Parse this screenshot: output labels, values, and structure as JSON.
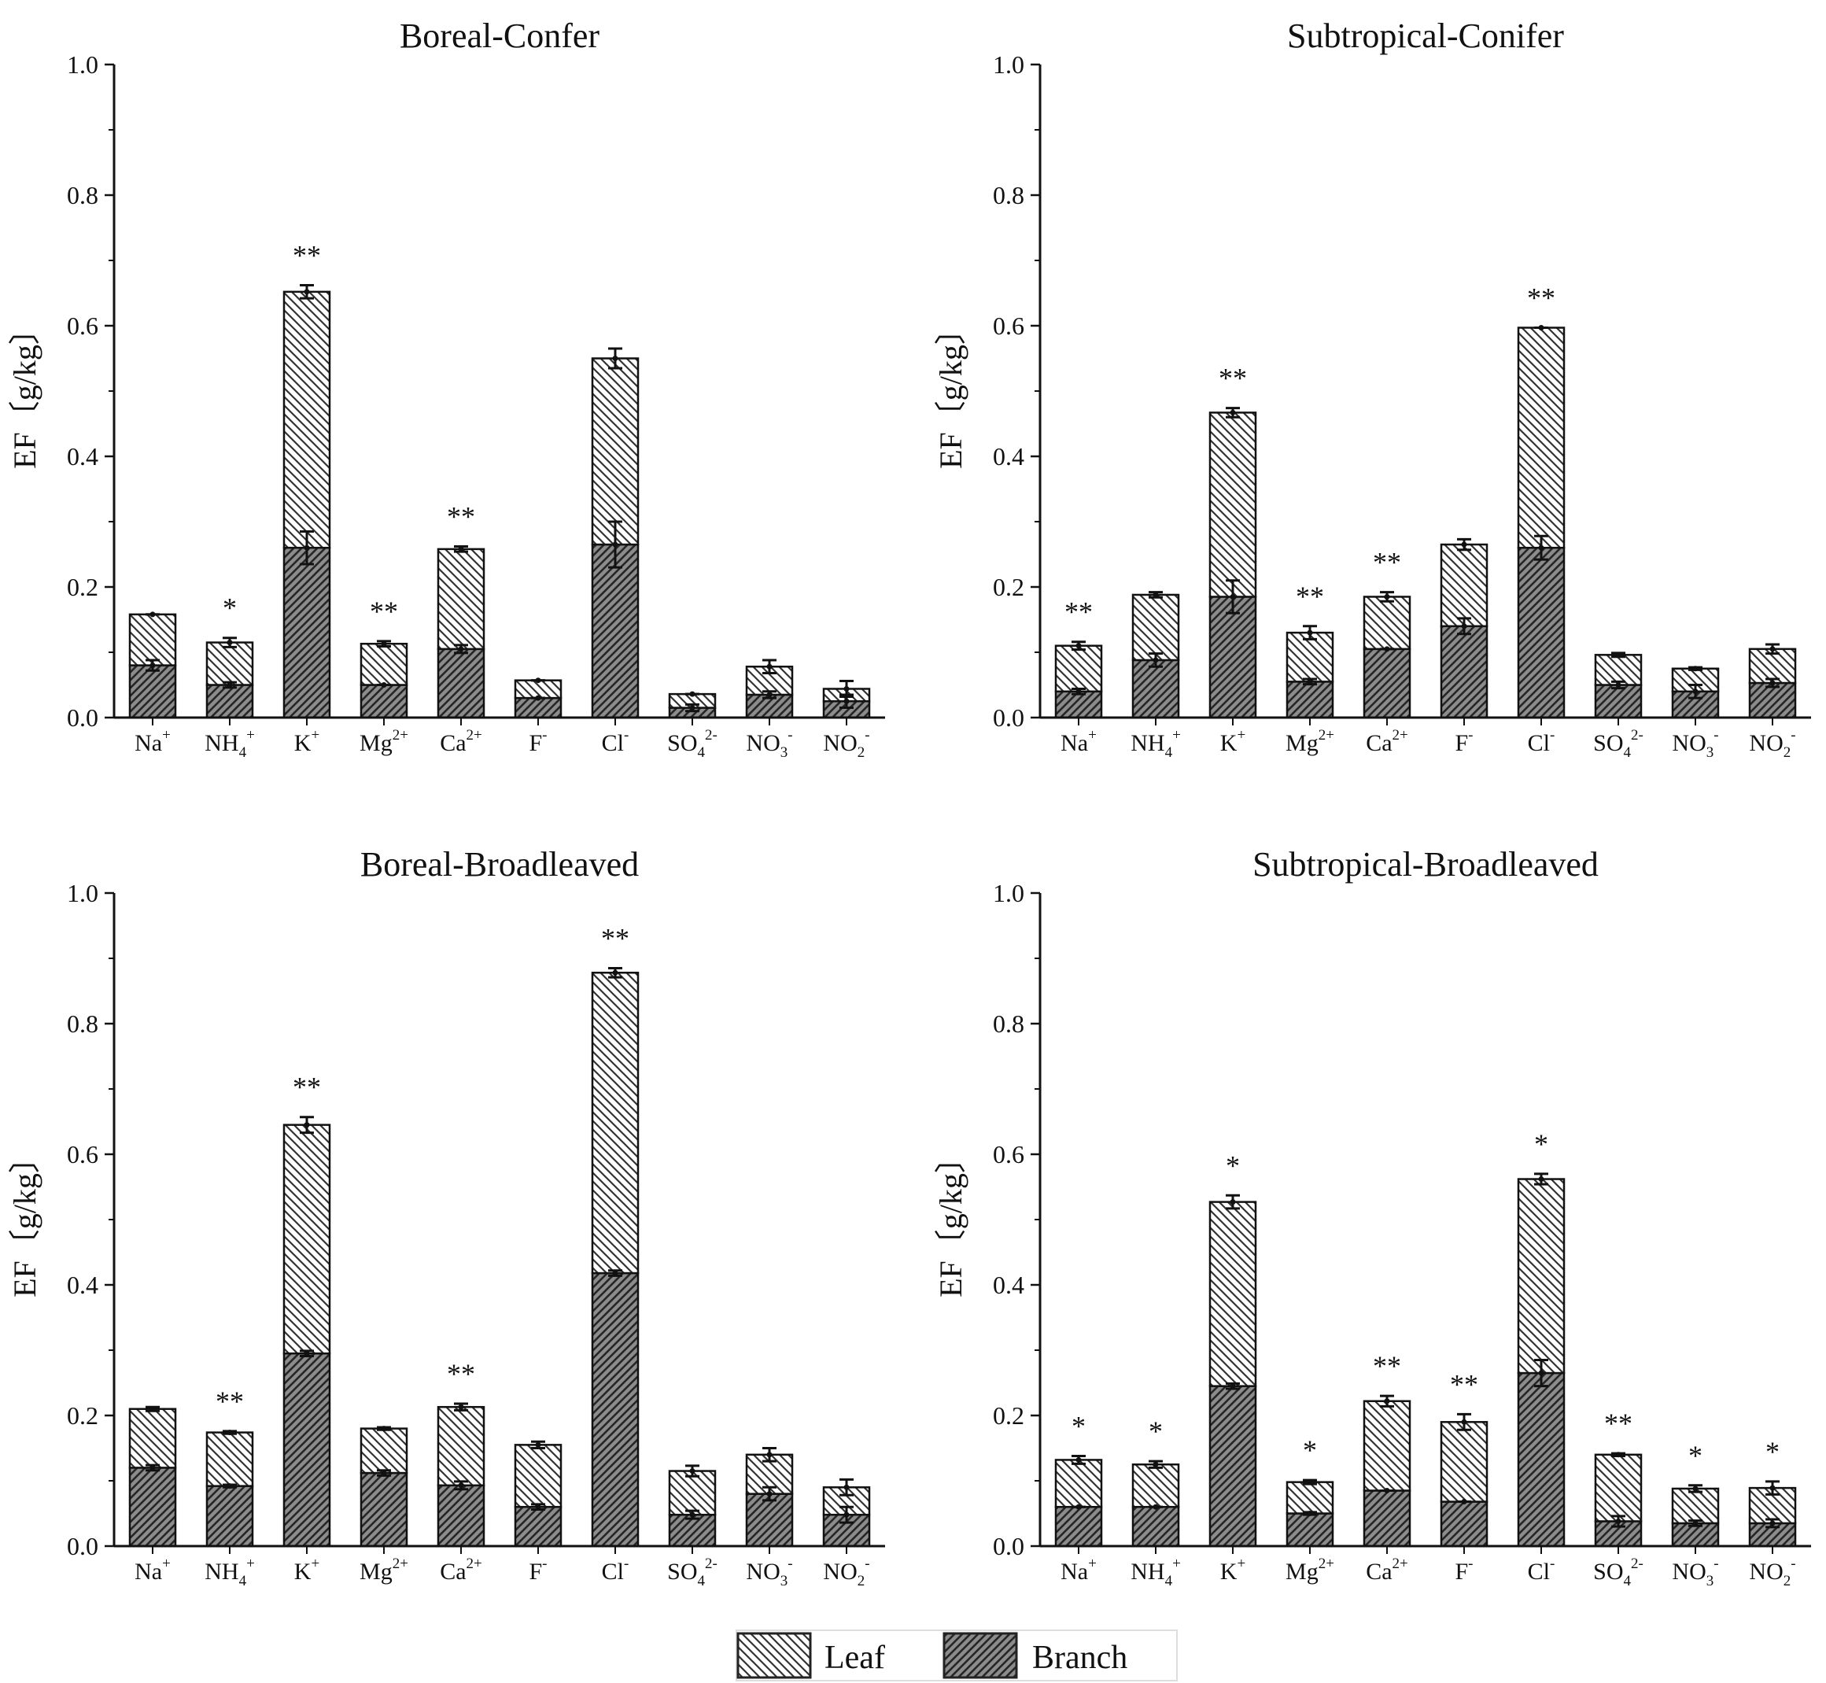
{
  "figure": {
    "legend": {
      "leaf": "Leaf",
      "branch": "Branch",
      "position": "bottom-center"
    }
  },
  "colors": {
    "axis": "#111111",
    "hatch": "#333333",
    "branch_fill": "#8c8c8c",
    "leaf_fill": "#ffffff"
  },
  "chart_data": [
    {
      "type": "bar",
      "stacked": true,
      "title": "Boreal-Confer",
      "ylabel": "EF〔g/kg〕",
      "ylim": [
        0,
        1.0
      ],
      "yticks": [
        "0.0",
        "0.2",
        "0.4",
        "0.6",
        "0.8",
        "1.0"
      ],
      "categories": [
        "Na+",
        "NH4+",
        "K+",
        "Mg2+",
        "Ca2+",
        "F-",
        "Cl-",
        "SO42-",
        "NO3-",
        "NO2-"
      ],
      "series": [
        {
          "name": "Branch",
          "values": [
            0.08,
            0.05,
            0.26,
            0.05,
            0.105,
            0.03,
            0.265,
            0.015,
            0.035,
            0.025
          ],
          "errors": [
            0.008,
            0.004,
            0.025,
            0.0,
            0.006,
            0.0,
            0.035,
            0.005,
            0.005,
            0.01
          ]
        },
        {
          "name": "Leaf",
          "values": [
            0.078,
            0.065,
            0.392,
            0.063,
            0.153,
            0.027,
            0.285,
            0.021,
            0.043,
            0.019
          ],
          "errors": [
            0.0,
            0.007,
            0.01,
            0.004,
            0.004,
            0.0,
            0.015,
            0.0,
            0.01,
            0.012
          ]
        }
      ],
      "significance": [
        "",
        "*",
        "**",
        "**",
        "**",
        "",
        "",
        "",
        "",
        ""
      ]
    },
    {
      "type": "bar",
      "stacked": true,
      "title": "Subtropical-Conifer",
      "ylabel": "EF〔g/kg〕",
      "ylim": [
        0,
        1.0
      ],
      "yticks": [
        "0.0",
        "0.2",
        "0.4",
        "0.6",
        "0.8",
        "1.0"
      ],
      "categories": [
        "Na+",
        "NH4+",
        "K+",
        "Mg2+",
        "Ca2+",
        "F-",
        "Cl-",
        "SO42-",
        "NO3-",
        "NO2-"
      ],
      "series": [
        {
          "name": "Branch",
          "values": [
            0.04,
            0.088,
            0.185,
            0.055,
            0.105,
            0.14,
            0.26,
            0.05,
            0.04,
            0.053
          ],
          "errors": [
            0.004,
            0.01,
            0.025,
            0.004,
            0.0,
            0.012,
            0.018,
            0.005,
            0.01,
            0.006
          ]
        },
        {
          "name": "Leaf",
          "values": [
            0.07,
            0.1,
            0.282,
            0.075,
            0.08,
            0.125,
            0.337,
            0.046,
            0.035,
            0.052
          ],
          "errors": [
            0.006,
            0.004,
            0.007,
            0.01,
            0.007,
            0.008,
            0.0,
            0.003,
            0.002,
            0.007
          ]
        }
      ],
      "significance": [
        "**",
        "",
        "**",
        "**",
        "**",
        "",
        "**",
        "",
        "",
        ""
      ]
    },
    {
      "type": "bar",
      "stacked": true,
      "title": "Boreal-Broadleaved",
      "ylabel": "EF〔g/kg〕",
      "ylim": [
        0,
        1.0
      ],
      "yticks": [
        "0.0",
        "0.2",
        "0.4",
        "0.6",
        "0.8",
        "1.0"
      ],
      "categories": [
        "Na+",
        "NH4+",
        "K+",
        "Mg2+",
        "Ca2+",
        "F-",
        "Cl-",
        "SO42-",
        "NO3-",
        "NO2-"
      ],
      "series": [
        {
          "name": "Branch",
          "values": [
            0.12,
            0.092,
            0.295,
            0.112,
            0.093,
            0.06,
            0.418,
            0.048,
            0.08,
            0.048
          ],
          "errors": [
            0.004,
            0.002,
            0.004,
            0.004,
            0.006,
            0.004,
            0.004,
            0.006,
            0.01,
            0.012
          ]
        },
        {
          "name": "Leaf",
          "values": [
            0.09,
            0.082,
            0.35,
            0.068,
            0.12,
            0.095,
            0.46,
            0.067,
            0.06,
            0.042
          ],
          "errors": [
            0.003,
            0.002,
            0.012,
            0.002,
            0.005,
            0.005,
            0.007,
            0.008,
            0.01,
            0.012
          ]
        }
      ],
      "significance": [
        "",
        "**",
        "**",
        "",
        "**",
        "",
        "**",
        "",
        "",
        ""
      ]
    },
    {
      "type": "bar",
      "stacked": true,
      "title": "Subtropical-Broadleaved",
      "ylabel": "EF〔g/kg〕",
      "ylim": [
        0,
        1.0
      ],
      "yticks": [
        "0.0",
        "0.2",
        "0.4",
        "0.6",
        "0.8",
        "1.0"
      ],
      "categories": [
        "Na+",
        "NH4+",
        "K+",
        "Mg2+",
        "Ca2+",
        "F-",
        "Cl-",
        "SO42-",
        "NO3-",
        "NO2-"
      ],
      "series": [
        {
          "name": "Branch",
          "values": [
            0.06,
            0.06,
            0.245,
            0.05,
            0.085,
            0.068,
            0.265,
            0.038,
            0.035,
            0.035
          ],
          "errors": [
            0.0,
            0.0,
            0.004,
            0.002,
            0.0,
            0.0,
            0.02,
            0.008,
            0.004,
            0.006
          ]
        },
        {
          "name": "Leaf",
          "values": [
            0.072,
            0.065,
            0.282,
            0.048,
            0.137,
            0.122,
            0.297,
            0.102,
            0.053,
            0.054
          ],
          "errors": [
            0.006,
            0.005,
            0.01,
            0.003,
            0.008,
            0.012,
            0.008,
            0.002,
            0.005,
            0.01
          ]
        }
      ],
      "significance": [
        "*",
        "*",
        "*",
        "*",
        "**",
        "**",
        "*",
        "**",
        "*",
        "*"
      ]
    }
  ]
}
